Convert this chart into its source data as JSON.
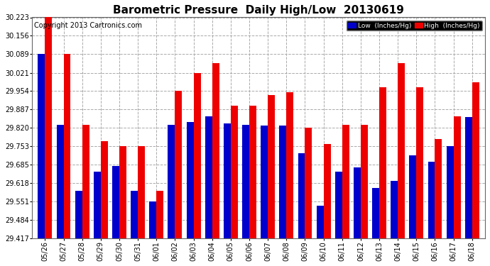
{
  "title": "Barometric Pressure  Daily High/Low  20130619",
  "copyright": "Copyright 2013 Cartronics.com",
  "legend_low": "Low  (Inches/Hg)",
  "legend_high": "High  (Inches/Hg)",
  "dates": [
    "05/26",
    "05/27",
    "05/28",
    "05/29",
    "05/30",
    "05/31",
    "06/01",
    "06/02",
    "06/03",
    "06/04",
    "06/05",
    "06/06",
    "06/07",
    "06/08",
    "06/09",
    "06/10",
    "06/11",
    "06/12",
    "06/13",
    "06/14",
    "06/15",
    "06/16",
    "06/17",
    "06/18"
  ],
  "low": [
    30.089,
    29.831,
    29.59,
    29.659,
    29.68,
    29.591,
    29.551,
    29.83,
    29.841,
    29.862,
    29.835,
    29.83,
    29.829,
    29.829,
    29.726,
    29.535,
    29.66,
    29.676,
    29.6,
    29.627,
    29.72,
    29.695,
    29.752,
    29.858
  ],
  "high": [
    30.223,
    30.089,
    29.831,
    29.77,
    29.753,
    29.753,
    29.59,
    29.954,
    30.021,
    30.055,
    29.9,
    29.9,
    29.94,
    29.95,
    29.82,
    29.762,
    29.831,
    29.831,
    29.968,
    30.055,
    29.968,
    29.78,
    29.862,
    29.986
  ],
  "ylim_min": 29.417,
  "ylim_max": 30.223,
  "yticks": [
    29.417,
    29.484,
    29.551,
    29.618,
    29.685,
    29.753,
    29.82,
    29.887,
    29.954,
    30.021,
    30.089,
    30.156,
    30.223
  ],
  "bar_width": 0.38,
  "low_color": "#0000cc",
  "high_color": "#ee0000",
  "bg_color": "#ffffff",
  "plot_bg": "#ffffff",
  "grid_color": "#aaaaaa",
  "title_fontsize": 11,
  "tick_fontsize": 7,
  "copyright_fontsize": 7
}
